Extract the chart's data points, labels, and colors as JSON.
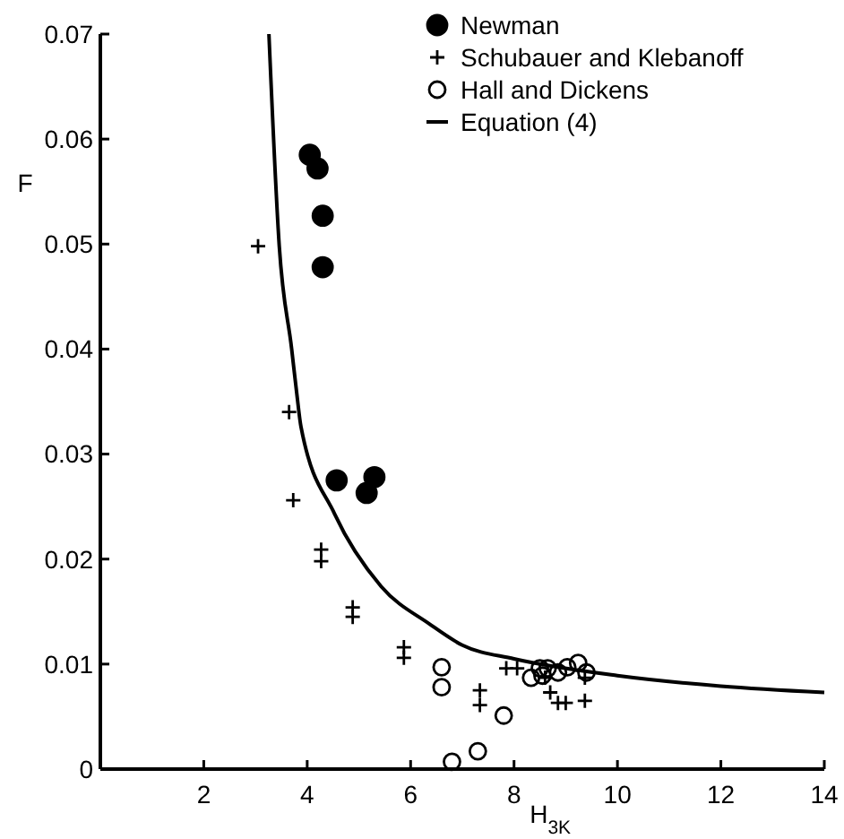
{
  "chart_data": {
    "type": "scatter",
    "ylabel": "F",
    "xlabel": "H$_{3K}$",
    "xlim": [
      0,
      14
    ],
    "ylim": [
      0,
      0.07
    ],
    "xticks": [
      2,
      4,
      6,
      8,
      10,
      12,
      14
    ],
    "yticks": [
      0,
      0.01,
      0.02,
      0.03,
      0.04,
      0.05,
      0.06,
      0.07
    ],
    "legend": "top right",
    "grid": false,
    "series": [
      {
        "name": "Newman",
        "color": "#000000",
        "marker": "circle",
        "x": [
          4.05,
          4.2,
          4.3,
          4.3,
          4.57,
          5.15,
          5.3
        ],
        "values": [
          0.0585,
          0.0572,
          0.0527,
          0.0478,
          0.0275,
          0.0263,
          0.0278
        ]
      },
      {
        "name": "Schubauer and Klebanoff",
        "color": "#000000",
        "marker": "cross",
        "x": [
          3.05,
          3.65,
          3.73,
          4.27,
          4.27,
          4.88,
          4.88,
          5.87,
          5.87,
          7.34,
          7.34,
          7.85,
          8.06,
          8.6,
          8.7,
          8.85,
          9.0,
          9.37,
          9.37
        ],
        "values": [
          0.0498,
          0.034,
          0.0256,
          0.0209,
          0.0198,
          0.0154,
          0.0145,
          0.0116,
          0.0106,
          0.0075,
          0.0061,
          0.0096,
          0.0096,
          0.0087,
          0.0073,
          0.0063,
          0.0063,
          0.0065,
          0.0087
        ]
      },
      {
        "name": "Hall and Dickens",
        "color": "#000000",
        "marker": "circle",
        "x": [
          6.6,
          6.6,
          6.8,
          7.3,
          7.8,
          8.33,
          8.5,
          8.55,
          8.65,
          8.85,
          9.03,
          9.24,
          9.4
        ],
        "values": [
          0.0097,
          0.0078,
          0.0007,
          0.0017,
          0.0051,
          0.0087,
          0.0096,
          0.0089,
          0.0096,
          0.0092,
          0.0097,
          0.0101,
          0.0092
        ]
      },
      {
        "name": "Equation (4)",
        "type": "line",
        "color": "#000000",
        "marker": "none",
        "line_style": "solid",
        "x": [
          3.26,
          3.46,
          3.7,
          3.8,
          3.88,
          4.53,
          5.43,
          6.37,
          7,
          8,
          10,
          12,
          14
        ],
        "values": [
          0.07,
          0.0498,
          0.04,
          0.0357,
          0.0326,
          0.0243,
          0.0174,
          0.0138,
          0.0118,
          0.0105,
          0.0089,
          0.0079,
          0.0073
        ]
      }
    ]
  }
}
